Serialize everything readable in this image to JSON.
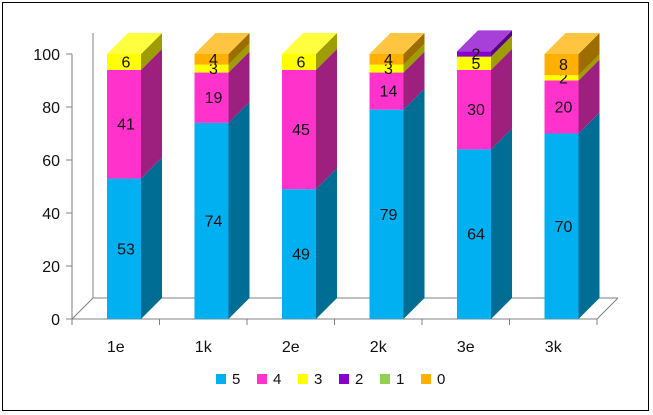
{
  "chart_data": {
    "type": "bar",
    "stacked": true,
    "style": "3d",
    "categories": [
      "1e",
      "1k",
      "2e",
      "2k",
      "3e",
      "3k"
    ],
    "series": [
      {
        "name": "5",
        "color": "#00B0F0",
        "values": [
          53,
          74,
          49,
          79,
          64,
          70
        ]
      },
      {
        "name": "4",
        "color": "#FF33CC",
        "values": [
          41,
          19,
          45,
          14,
          30,
          20
        ]
      },
      {
        "name": "3",
        "color": "#FFFF00",
        "values": [
          6,
          3,
          6,
          3,
          5,
          2
        ]
      },
      {
        "name": "2",
        "color": "#8800CC",
        "values": [
          0,
          0,
          0,
          0,
          2,
          0
        ]
      },
      {
        "name": "1",
        "color": "#92D050",
        "values": [
          0,
          0,
          0,
          0,
          0,
          0
        ]
      },
      {
        "name": "0",
        "color": "#FFB000",
        "values": [
          0,
          4,
          0,
          4,
          0,
          8
        ]
      }
    ],
    "ylim": [
      0,
      100
    ],
    "yticks": [
      0,
      20,
      40,
      60,
      80,
      100
    ],
    "grid": false,
    "legend_position": "bottom"
  }
}
